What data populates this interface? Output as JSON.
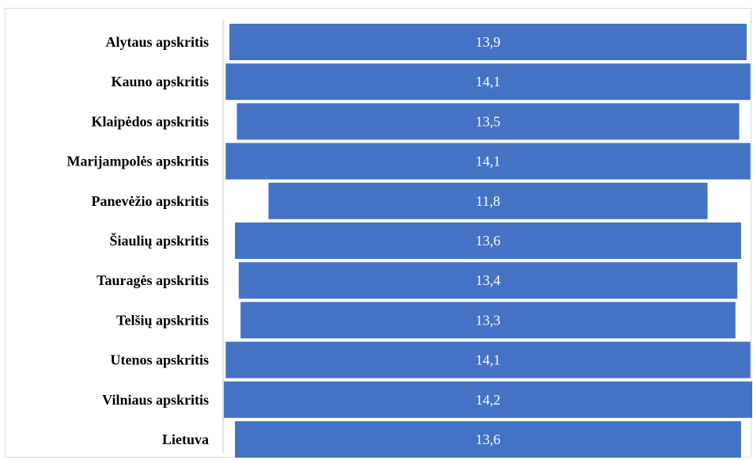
{
  "chart_data": {
    "type": "bar",
    "orientation": "horizontal",
    "layout": "centered",
    "categories": [
      "Alytaus apskritis",
      "Kauno apskritis",
      "Klaipėdos apskritis",
      "Marijampolės apskritis",
      "Panevėžio apskritis",
      "Šiaulių apskritis",
      "Tauragės apskritis",
      "Telšių apskritis",
      "Utenos apskritis",
      "Vilniaus apskritis",
      "Lietuva"
    ],
    "values": [
      13.9,
      14.1,
      13.5,
      14.1,
      11.8,
      13.6,
      13.4,
      13.3,
      14.1,
      14.2,
      13.6
    ],
    "value_labels": [
      "13,9",
      "14,1",
      "13,5",
      "14,1",
      "11,8",
      "13,6",
      "13,4",
      "13,3",
      "14,1",
      "14,2",
      "13,6"
    ],
    "title": "",
    "xlabel": "",
    "ylabel": "",
    "grid": false,
    "legend": "none",
    "colors": {
      "bar": "#4472C4",
      "bar_label": "#FFFFFF",
      "category_label": "#000000",
      "axis_line": "#D9D9D9"
    }
  }
}
